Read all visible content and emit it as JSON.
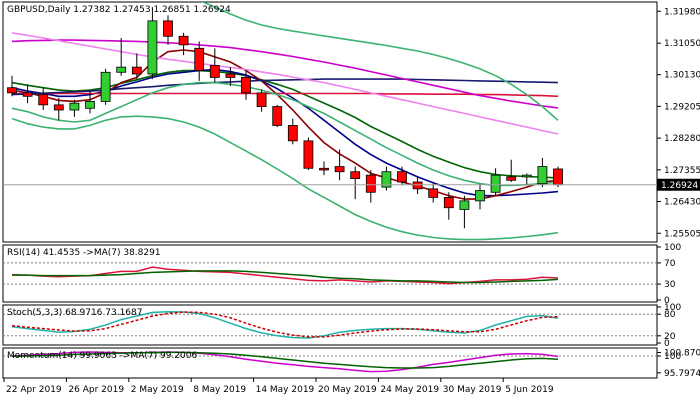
{
  "chart_data": {
    "type": "candlestick",
    "header": {
      "symbol": "GBPUSD,Daily",
      "ohlc": "1.27382 1.27453 1.26851 1.26924"
    },
    "current_price_label": "1.26924",
    "price_axis": {
      "ylim": [
        1.2525,
        1.3225
      ],
      "tick_labels": [
        "1.31980",
        "1.31050",
        "1.30130",
        "1.29205",
        "1.28280",
        "1.27355",
        "1.26430",
        "1.25505"
      ],
      "tick_values": [
        1.3198,
        1.3105,
        1.3013,
        1.29205,
        1.2828,
        1.27355,
        1.2643,
        1.25505
      ]
    },
    "x_axis": {
      "tick_labels": [
        "22 Apr 2019",
        "26 Apr 2019",
        "2 May 2019",
        "8 May 2019",
        "14 May 2019",
        "20 May 2019",
        "24 May 2019",
        "30 May 2019",
        "5 Jun 2019"
      ],
      "tick_index": [
        0,
        4,
        8,
        12,
        16,
        20,
        24,
        28,
        32
      ]
    },
    "candles": [
      {
        "o": 1.2975,
        "h": 1.301,
        "l": 1.295,
        "c": 1.296
      },
      {
        "o": 1.296,
        "h": 1.2985,
        "l": 1.293,
        "c": 1.295
      },
      {
        "o": 1.2955,
        "h": 1.2975,
        "l": 1.291,
        "c": 1.2925
      },
      {
        "o": 1.2925,
        "h": 1.2945,
        "l": 1.288,
        "c": 1.291
      },
      {
        "o": 1.291,
        "h": 1.294,
        "l": 1.289,
        "c": 1.293
      },
      {
        "o": 1.2915,
        "h": 1.2965,
        "l": 1.29,
        "c": 1.2935
      },
      {
        "o": 1.2935,
        "h": 1.303,
        "l": 1.2925,
        "c": 1.302
      },
      {
        "o": 1.302,
        "h": 1.312,
        "l": 1.301,
        "c": 1.3035
      },
      {
        "o": 1.3035,
        "h": 1.3075,
        "l": 1.3,
        "c": 1.3015
      },
      {
        "o": 1.3015,
        "h": 1.321,
        "l": 1.3,
        "c": 1.317
      },
      {
        "o": 1.317,
        "h": 1.3186,
        "l": 1.31,
        "c": 1.3125
      },
      {
        "o": 1.3125,
        "h": 1.3135,
        "l": 1.307,
        "c": 1.31
      },
      {
        "o": 1.309,
        "h": 1.311,
        "l": 1.2995,
        "c": 1.3025
      },
      {
        "o": 1.304,
        "h": 1.309,
        "l": 1.299,
        "c": 1.3005
      },
      {
        "o": 1.3015,
        "h": 1.3035,
        "l": 1.298,
        "c": 1.3005
      },
      {
        "o": 1.3005,
        "h": 1.3025,
        "l": 1.294,
        "c": 1.296
      },
      {
        "o": 1.296,
        "h": 1.297,
        "l": 1.2905,
        "c": 1.292
      },
      {
        "o": 1.292,
        "h": 1.2925,
        "l": 1.286,
        "c": 1.2865
      },
      {
        "o": 1.2865,
        "h": 1.2885,
        "l": 1.281,
        "c": 1.282
      },
      {
        "o": 1.282,
        "h": 1.283,
        "l": 1.2735,
        "c": 1.274
      },
      {
        "o": 1.274,
        "h": 1.276,
        "l": 1.272,
        "c": 1.2735
      },
      {
        "o": 1.2745,
        "h": 1.2795,
        "l": 1.2705,
        "c": 1.273
      },
      {
        "o": 1.273,
        "h": 1.2745,
        "l": 1.265,
        "c": 1.271
      },
      {
        "o": 1.272,
        "h": 1.2735,
        "l": 1.264,
        "c": 1.267
      },
      {
        "o": 1.2685,
        "h": 1.2745,
        "l": 1.2675,
        "c": 1.273
      },
      {
        "o": 1.273,
        "h": 1.2745,
        "l": 1.269,
        "c": 1.27
      },
      {
        "o": 1.27,
        "h": 1.2715,
        "l": 1.2665,
        "c": 1.268
      },
      {
        "o": 1.268,
        "h": 1.2695,
        "l": 1.264,
        "c": 1.2655
      },
      {
        "o": 1.2655,
        "h": 1.267,
        "l": 1.259,
        "c": 1.2625
      },
      {
        "o": 1.262,
        "h": 1.266,
        "l": 1.2565,
        "c": 1.2645
      },
      {
        "o": 1.2645,
        "h": 1.2695,
        "l": 1.262,
        "c": 1.2675
      },
      {
        "o": 1.267,
        "h": 1.274,
        "l": 1.266,
        "c": 1.272
      },
      {
        "o": 1.2715,
        "h": 1.2765,
        "l": 1.27,
        "c": 1.2705
      },
      {
        "o": 1.2715,
        "h": 1.2725,
        "l": 1.269,
        "c": 1.272
      },
      {
        "o": 1.2695,
        "h": 1.277,
        "l": 1.2685,
        "c": 1.2745
      },
      {
        "o": 1.2738,
        "h": 1.2745,
        "l": 1.2685,
        "c": 1.2692
      }
    ],
    "overlays": [
      {
        "color": "#006400",
        "values": [
          1.299,
          1.2982,
          1.2975,
          1.2968,
          1.2965,
          1.2968,
          1.2975,
          1.2988,
          1.2998,
          1.301,
          1.302,
          1.3025,
          1.3025,
          1.3022,
          1.3018,
          1.301,
          1.2998,
          1.2985,
          1.297,
          1.295,
          1.293,
          1.291,
          1.2888,
          1.2862,
          1.284,
          1.2818,
          1.2795,
          1.2775,
          1.2758,
          1.2742,
          1.273,
          1.2722,
          1.2718,
          1.2716,
          1.2714,
          1.2712
        ]
      },
      {
        "color": "#00008b",
        "values": [
          1.2975,
          1.2965,
          1.2958,
          1.295,
          1.295,
          1.2955,
          1.2965,
          1.298,
          1.2992,
          1.3005,
          1.3015,
          1.302,
          1.3025,
          1.3028,
          1.3022,
          1.3012,
          1.2995,
          1.2972,
          1.2945,
          1.2915,
          1.288,
          1.2845,
          1.281,
          1.278,
          1.2755,
          1.2735,
          1.2715,
          1.2698,
          1.2682,
          1.2668,
          1.266,
          1.266,
          1.2662,
          1.2665,
          1.2668,
          1.2672
        ]
      },
      {
        "color": "#8b0000",
        "values": [
          1.2968,
          1.296,
          1.295,
          1.2938,
          1.2935,
          1.294,
          1.296,
          1.299,
          1.3005,
          1.305,
          1.308,
          1.3085,
          1.308,
          1.3065,
          1.305,
          1.3025,
          1.2995,
          1.2955,
          1.291,
          1.286,
          1.2815,
          1.2782,
          1.2755,
          1.2725,
          1.2712,
          1.27,
          1.2688,
          1.2675,
          1.266,
          1.265,
          1.265,
          1.266,
          1.2672,
          1.2685,
          1.27,
          1.2705
        ]
      },
      {
        "color": "#dc143c",
        "values": [
          1.2958,
          1.2958,
          1.2958,
          1.2958,
          1.2958,
          1.2958,
          1.2958,
          1.2958,
          1.2958,
          1.2958,
          1.2958,
          1.2958,
          1.2958,
          1.2958,
          1.2958,
          1.2958,
          1.2958,
          1.2958,
          1.2958,
          1.2958,
          1.2958,
          1.2958,
          1.2958,
          1.2958,
          1.2957,
          1.2957,
          1.2957,
          1.2956,
          1.2956,
          1.2956,
          1.2955,
          1.2955,
          1.2954,
          1.2953,
          1.2952,
          1.295
        ]
      },
      {
        "color": "#191970",
        "values": [
          1.2955,
          1.2957,
          1.2959,
          1.2961,
          1.2963,
          1.2965,
          1.2968,
          1.2972,
          1.2975,
          1.2978,
          1.2982,
          1.2985,
          1.2988,
          1.299,
          1.2992,
          1.2994,
          1.2996,
          1.2997,
          1.2998,
          1.2999,
          1.3,
          1.3,
          1.3,
          1.3,
          1.3,
          1.3,
          1.2999,
          1.2998,
          1.2997,
          1.2996,
          1.2995,
          1.2994,
          1.2993,
          1.2992,
          1.2991,
          1.299
        ]
      },
      {
        "color": "#cc00cc",
        "values": [
          1.311,
          1.3112,
          1.3113,
          1.3114,
          1.3114,
          1.3113,
          1.3112,
          1.3111,
          1.311,
          1.3108,
          1.3106,
          1.3104,
          1.31,
          1.3096,
          1.3092,
          1.3086,
          1.308,
          1.3073,
          1.3066,
          1.3058,
          1.305,
          1.3041,
          1.3032,
          1.3022,
          1.3012,
          1.3002,
          1.2992,
          1.2982,
          1.2972,
          1.2962,
          1.2952,
          1.2944,
          1.2936,
          1.2929,
          1.2922,
          1.2916
        ]
      },
      {
        "color": "#ee82ee",
        "values": [
          1.3135,
          1.3128,
          1.312,
          1.3112,
          1.3104,
          1.3096,
          1.3088,
          1.308,
          1.3072,
          1.3065,
          1.3058,
          1.3052,
          1.3046,
          1.304,
          1.3034,
          1.3028,
          1.3021,
          1.3014,
          1.3006,
          1.2998,
          1.299,
          1.298,
          1.297,
          1.296,
          1.295,
          1.294,
          1.293,
          1.292,
          1.291,
          1.29,
          1.289,
          1.288,
          1.287,
          1.286,
          1.285,
          1.284
        ]
      },
      {
        "color": "#3cb371",
        "values": [
          1.2915,
          1.2905,
          1.289,
          1.288,
          1.2875,
          1.288,
          1.29,
          1.292,
          1.294,
          1.296,
          1.2975,
          1.2985,
          1.299,
          1.299,
          1.2985,
          1.2978,
          1.2968,
          1.2955,
          1.294,
          1.292,
          1.29,
          1.2875,
          1.285,
          1.2825,
          1.28,
          1.2778,
          1.2755,
          1.2735,
          1.2718,
          1.2705,
          1.2695,
          1.269,
          1.269,
          1.2692,
          1.2695,
          1.27
        ]
      },
      {
        "color": "#3cb371",
        "values": [
          1.332,
          1.333,
          1.3335,
          1.3338,
          1.3338,
          1.3335,
          1.333,
          1.332,
          1.3305,
          1.329,
          1.327,
          1.325,
          1.323,
          1.321,
          1.319,
          1.3172,
          1.3158,
          1.3148,
          1.314,
          1.3133,
          1.3126,
          1.3119,
          1.3112,
          1.3105,
          1.3098,
          1.309,
          1.3082,
          1.3072,
          1.306,
          1.3046,
          1.303,
          1.301,
          1.2985,
          1.2955,
          1.292,
          1.288
        ]
      },
      {
        "color": "#3cb371",
        "values": [
          1.2885,
          1.287,
          1.286,
          1.2855,
          1.2855,
          1.2865,
          1.288,
          1.289,
          1.2892,
          1.289,
          1.2885,
          1.2875,
          1.286,
          1.284,
          1.2815,
          1.279,
          1.2765,
          1.2738,
          1.271,
          1.268,
          1.2655,
          1.263,
          1.2605,
          1.2585,
          1.2568,
          1.2555,
          1.2545,
          1.2538,
          1.2534,
          1.2532,
          1.2532,
          1.2534,
          1.2537,
          1.2541,
          1.2546,
          1.2552
        ]
      }
    ],
    "rsi_panel": {
      "label": "RSI(14) 41.4535 ->MA(7) 38.8291",
      "ylim": [
        0,
        100
      ],
      "tick_labels": [
        "100",
        "70",
        "30",
        "0"
      ],
      "tick_values": [
        100,
        70,
        30,
        0
      ],
      "levels": [
        70,
        30
      ],
      "series": [
        {
          "color": "#dc143c",
          "values": [
            48,
            47,
            45,
            44,
            45,
            46,
            50,
            54,
            54,
            62,
            58,
            56,
            54,
            53,
            52,
            49,
            46,
            43,
            40,
            37,
            36,
            38,
            36,
            34,
            36,
            35,
            34,
            33,
            31,
            33,
            35,
            38,
            38,
            39,
            43,
            41.45
          ]
        },
        {
          "color": "#006400",
          "values": [
            47,
            47,
            46,
            46,
            46,
            46,
            47,
            48,
            50,
            52,
            53,
            54,
            55,
            55,
            55,
            54,
            52,
            50,
            48,
            46,
            43,
            41,
            40,
            38,
            37,
            36,
            36,
            35,
            34,
            33,
            33,
            34,
            35,
            36,
            37,
            38.83
          ]
        }
      ]
    },
    "stoch_panel": {
      "label": "Stoch(5,3,3) 68.9716 73.1687",
      "ylim": [
        0,
        100
      ],
      "tick_labels": [
        "100",
        "80",
        "20",
        "0"
      ],
      "tick_values": [
        100,
        80,
        20,
        0
      ],
      "levels": [
        80,
        20
      ],
      "series": [
        {
          "color": "#20b2aa",
          "values": [
            45,
            40,
            35,
            30,
            32,
            38,
            50,
            65,
            75,
            85,
            87,
            86,
            82,
            70,
            55,
            40,
            28,
            20,
            15,
            14,
            20,
            30,
            35,
            38,
            40,
            40,
            38,
            34,
            30,
            28,
            35,
            50,
            62,
            74,
            76,
            68.97
          ]
        },
        {
          "color": "#cc0000",
          "dashed": true,
          "values": [
            48,
            44,
            40,
            36,
            33,
            34,
            40,
            52,
            63,
            75,
            82,
            86,
            85,
            80,
            70,
            55,
            41,
            30,
            22,
            17,
            17,
            22,
            28,
            33,
            37,
            39,
            39,
            37,
            34,
            31,
            31,
            38,
            50,
            62,
            71,
            73.17
          ]
        }
      ]
    },
    "momentum_panel": {
      "label": "Momentum(14) 99.9063 ->MA(7) 99.2006",
      "ylim": [
        95.0,
        101.5
      ],
      "tick_labels": [
        "100.8705",
        "100",
        "95.7974"
      ],
      "tick_values": [
        100.8705,
        100,
        95.7974
      ],
      "levels": [
        100
      ],
      "series": [
        {
          "color": "#cc00cc",
          "values": [
            100.0,
            100.2,
            100.4,
            100.6,
            100.9,
            101.0,
            100.9,
            100.8,
            100.8,
            100.9,
            101.0,
            100.9,
            100.7,
            100.3,
            99.8,
            99.2,
            98.7,
            98.2,
            97.8,
            97.4,
            97.1,
            96.8,
            96.4,
            96.1,
            96.2,
            96.6,
            97.2,
            97.9,
            98.4,
            99.0,
            99.6,
            100.2,
            100.5,
            100.6,
            100.4,
            99.9
          ]
        },
        {
          "color": "#006400",
          "values": [
            99.9,
            100.0,
            100.1,
            100.2,
            100.4,
            100.5,
            100.6,
            100.7,
            100.8,
            100.8,
            100.9,
            100.9,
            100.8,
            100.7,
            100.5,
            100.2,
            99.8,
            99.4,
            99.0,
            98.6,
            98.2,
            97.9,
            97.6,
            97.3,
            97.1,
            97.0,
            97.0,
            97.1,
            97.4,
            97.8,
            98.2,
            98.6,
            99.0,
            99.3,
            99.4,
            99.2
          ]
        }
      ]
    },
    "colors": {
      "bull_candle": "#32cd32",
      "bear_candle": "#ff0000",
      "grid": "#c0c0c0",
      "axis": "#000000"
    }
  }
}
